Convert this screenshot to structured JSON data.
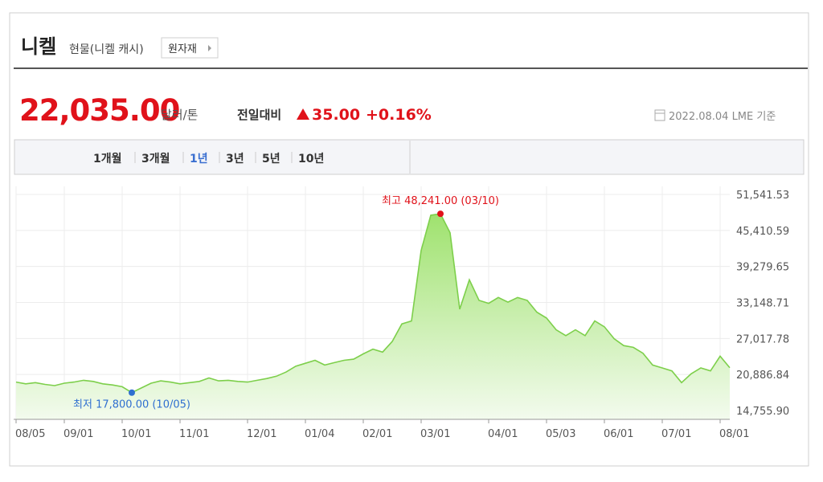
{
  "header": {
    "title": "니켈",
    "subtitle": "현물(니켈 캐시)",
    "button": "원자재"
  },
  "quote": {
    "price": "22,035.00",
    "unit": "달러/톤",
    "change_label": "전일대비",
    "change": "35.00",
    "change_percent": "+0.16%",
    "date": "2022.08.04 LME 기준"
  },
  "tabs": {
    "items": [
      "1개월",
      "3개월",
      "1년",
      "3년",
      "5년",
      "10년"
    ],
    "active": "1년"
  },
  "chart_data": {
    "type": "area",
    "categories": [
      "08/05",
      null,
      null,
      null,
      null,
      "09/01",
      null,
      null,
      null,
      null,
      null,
      "10/01",
      null,
      null,
      null,
      null,
      null,
      "11/01",
      null,
      null,
      null,
      null,
      null,
      null,
      "12/01",
      null,
      null,
      null,
      null,
      null,
      "01/04",
      null,
      null,
      null,
      null,
      null,
      "02/01",
      null,
      null,
      null,
      null,
      null,
      "03/01",
      null,
      null,
      null,
      null,
      null,
      null,
      "04/01",
      null,
      null,
      null,
      null,
      null,
      "05/03",
      null,
      null,
      null,
      null,
      null,
      "06/01",
      null,
      null,
      null,
      null,
      null,
      "07/01",
      null,
      null,
      null,
      null,
      null,
      "08/01",
      null
    ],
    "values": [
      19600,
      19300,
      19500,
      19200,
      19000,
      19400,
      19600,
      19900,
      19700,
      19300,
      19100,
      18800,
      17800,
      18600,
      19400,
      19800,
      19600,
      19300,
      19500,
      19700,
      20300,
      19800,
      19900,
      19700,
      19600,
      19900,
      20200,
      20600,
      21300,
      22300,
      22800,
      23300,
      22500,
      22900,
      23300,
      23500,
      24400,
      25200,
      24700,
      26500,
      29500,
      30000,
      42000,
      48000,
      48241,
      45000,
      32000,
      37000,
      33500,
      33000,
      34000,
      33200,
      34000,
      33500,
      31500,
      30500,
      28500,
      27500,
      28500,
      27500,
      30000,
      29000,
      27000,
      25800,
      25500,
      24500,
      22500,
      22000,
      21500,
      19500,
      21000,
      22000,
      21500,
      24000,
      22035
    ],
    "color": "#7dcf4b",
    "ylim": [
      14755.9,
      51541.53
    ],
    "yticks": [
      {
        "value": 14755.9,
        "label": "14,755.90"
      },
      {
        "value": 20886.84,
        "label": "20,886.84"
      },
      {
        "value": 27017.78,
        "label": "27,017.78"
      },
      {
        "value": 33148.71,
        "label": "33,148.71"
      },
      {
        "value": 39279.65,
        "label": "39,279.65"
      },
      {
        "value": 45410.59,
        "label": "45,410.59"
      },
      {
        "value": 51541.53,
        "label": "51,541.53"
      }
    ],
    "grid": true,
    "y_axis_side": "right",
    "annotations": [
      {
        "text": "최고 48,241.00 (03/10)",
        "value": 48241,
        "color": "#e0121a"
      },
      {
        "text": "최저 17,800.00 (10/05)",
        "value": 17800,
        "color": "#2f6fd0"
      }
    ]
  }
}
